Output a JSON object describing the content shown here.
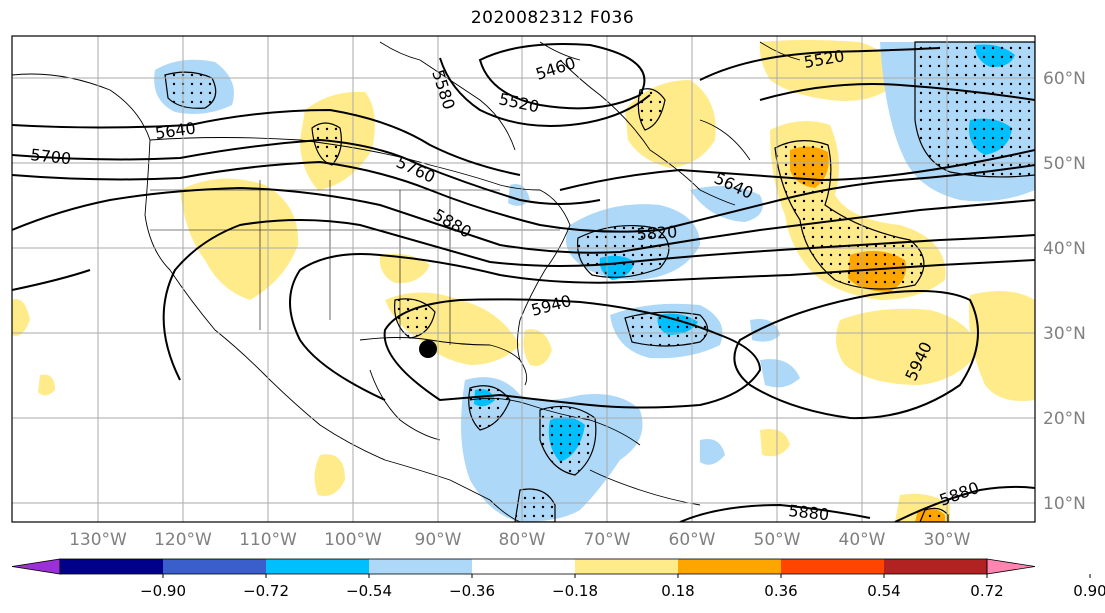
{
  "title": "2020082312 F036",
  "map": {
    "lat_labels": [
      "60°N",
      "50°N",
      "40°N",
      "30°N",
      "20°N",
      "10°N"
    ],
    "lon_labels": [
      "130°W",
      "120°W",
      "110°W",
      "100°W",
      "90°W",
      "80°W",
      "70°W",
      "60°W",
      "50°W",
      "40°W",
      "30°W"
    ],
    "contour_labels": [
      "5460",
      "5520",
      "5520",
      "5580",
      "5640",
      "5700",
      "5760",
      "5640",
      "5820",
      "5880",
      "5940",
      "5940",
      "5880",
      "5880"
    ],
    "marker": "storm-center-dot"
  },
  "colorbar": {
    "ticks": [
      "−0.90",
      "−0.72",
      "−0.54",
      "−0.36",
      "−0.18",
      "0.18",
      "0.36",
      "0.54",
      "0.72",
      "0.90"
    ],
    "colors": [
      "#9a30d6",
      "#00008b",
      "#3a5fcd",
      "#00bfff",
      "#add8f7",
      "#ffffff",
      "#ffeb8a",
      "#ffa500",
      "#ff4500",
      "#b22222",
      "#ff85b0"
    ]
  },
  "colors": {
    "light_blue": "#add8f7",
    "blue": "#00bfff",
    "light_yellow": "#ffeb8a",
    "orange": "#ffa500",
    "grid": "#aaaaaa"
  }
}
